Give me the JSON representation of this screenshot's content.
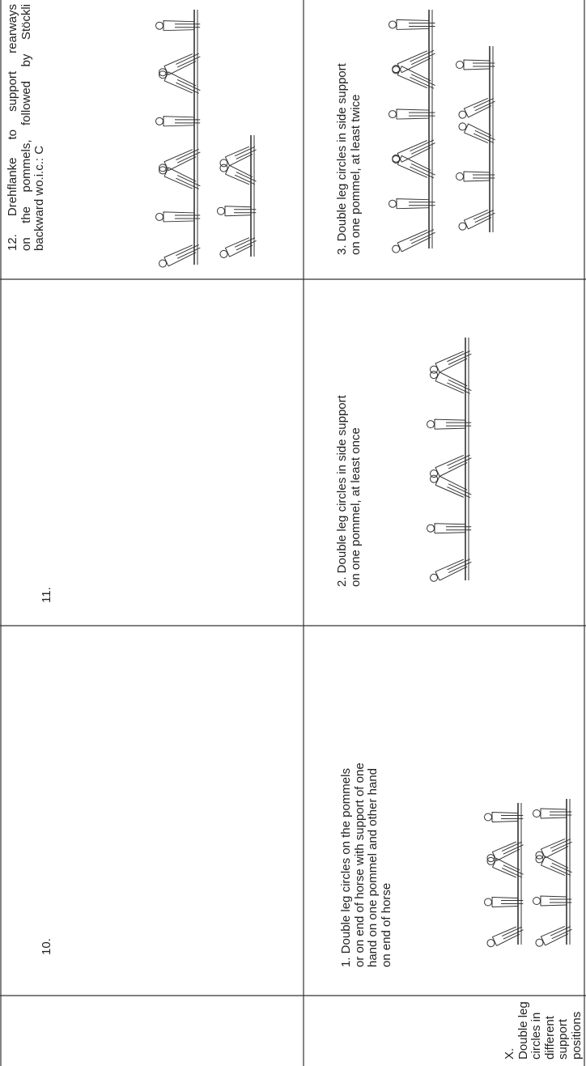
{
  "top_row": {
    "exercise_10": "10.",
    "exercise_11": "11.",
    "exercise_12": {
      "lines": [
        "12. Drehflanke to support rearways",
        "on the pommels, followed by Stöckli",
        "backward wo.i.c.: C"
      ]
    }
  },
  "group": {
    "label": {
      "lines": [
        "X.",
        "Double leg",
        "circles in",
        "different",
        "support",
        "positions"
      ]
    },
    "exercises": [
      {
        "lines": [
          "1. Double leg circles on the pommels",
          "or on end of horse with support of one",
          "hand on one pommel and other hand",
          "on end of horse"
        ]
      },
      {
        "lines": [
          "2. Double leg circles in side support",
          "on one pommel, at least once"
        ]
      },
      {
        "lines": [
          "3. Double leg circles in side support",
          "on one pommel, at least twice"
        ]
      }
    ]
  }
}
